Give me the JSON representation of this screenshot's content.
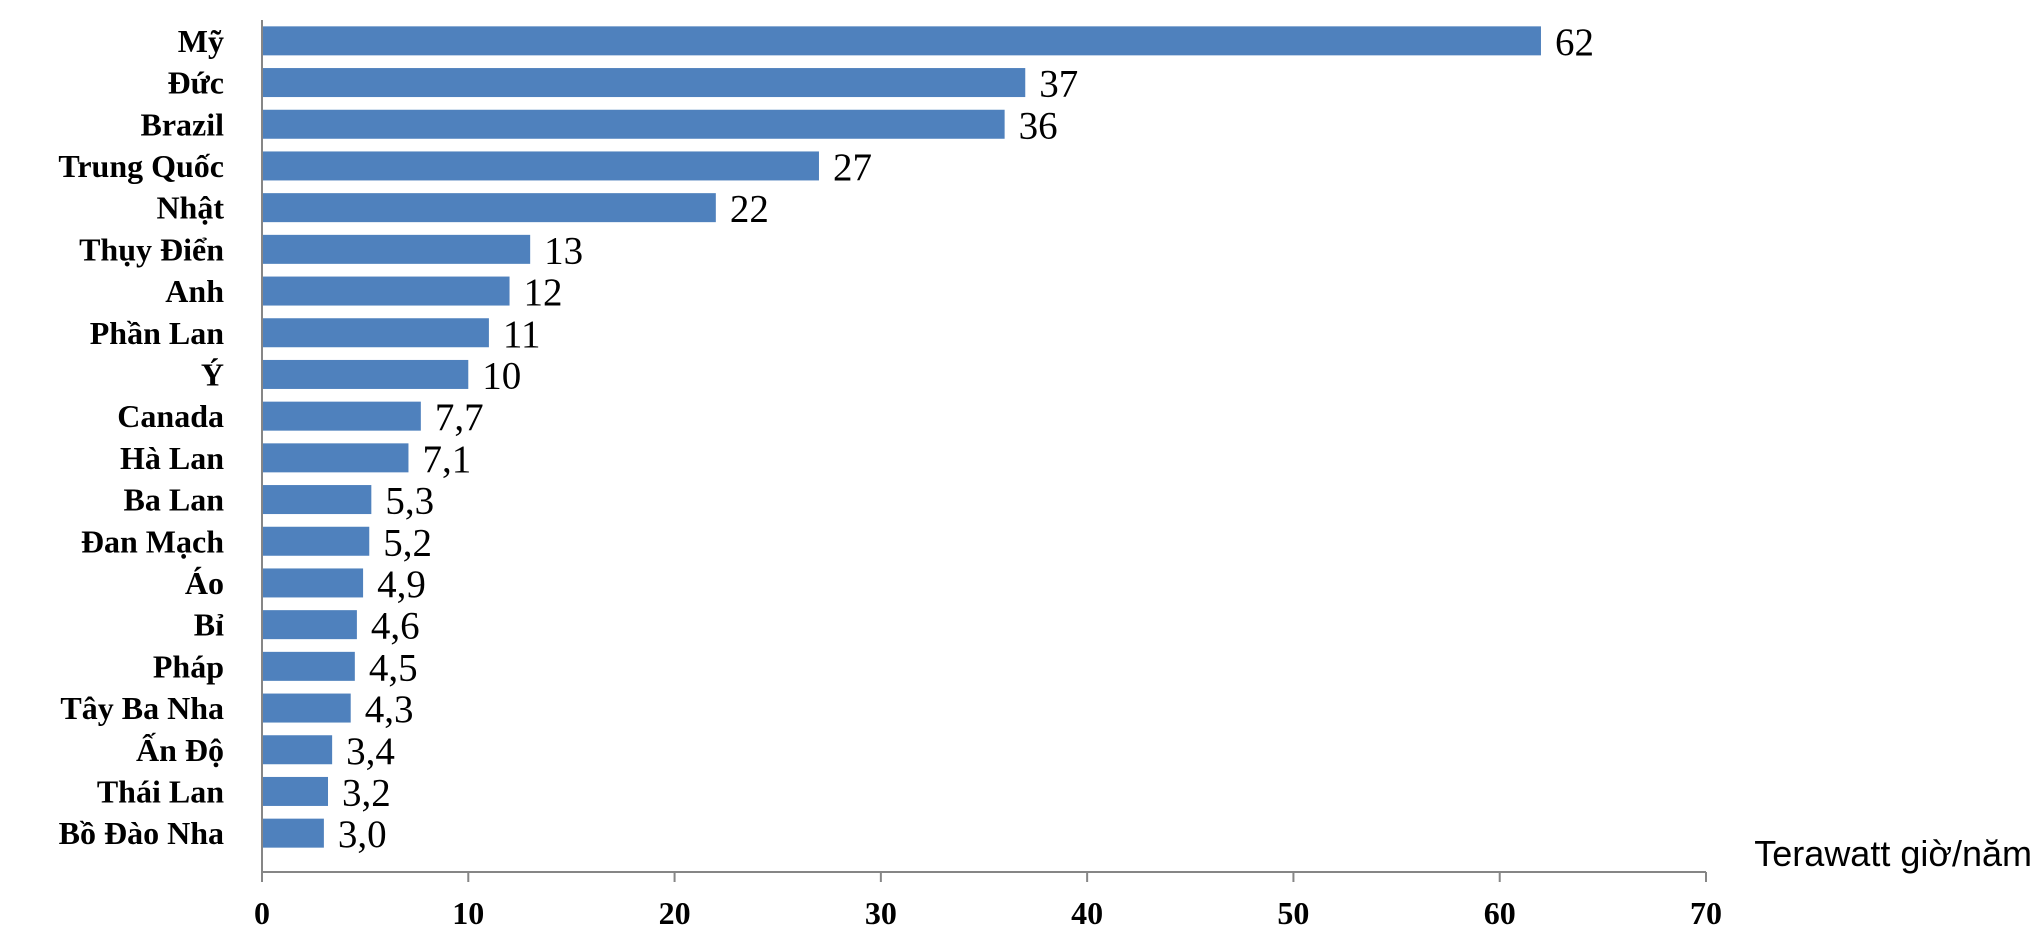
{
  "chart_data": {
    "type": "bar",
    "orientation": "horizontal",
    "categories": [
      "Mỹ",
      "Đức",
      "Brazil",
      "Trung Quốc",
      "Nhật",
      "Thụy Điển",
      "Anh",
      "Phần Lan",
      "Ý",
      "Canada",
      "Hà Lan",
      "Ba Lan",
      "Đan Mạch",
      "Áo",
      "Bỉ",
      "Pháp",
      "Tây Ba Nha",
      "Ấn Độ",
      "Thái Lan",
      "Bồ Đào Nha"
    ],
    "values": [
      62,
      37,
      36,
      27,
      22,
      13,
      12,
      11,
      10,
      7.7,
      7.1,
      5.3,
      5.2,
      4.9,
      4.6,
      4.5,
      4.3,
      3.4,
      3.2,
      3.0
    ],
    "value_labels": [
      "62",
      "37",
      "36",
      "27",
      "22",
      "13",
      "12",
      "11",
      "10",
      "7,7",
      "7,1",
      "5,3",
      "5,2",
      "4,9",
      "4,6",
      "4,5",
      "4,3",
      "3,4",
      "3,2",
      "3,0"
    ],
    "xticks": [
      "0",
      "10",
      "20",
      "30",
      "40",
      "50",
      "60",
      "70"
    ],
    "xlabel": "Terawatt giờ/năm",
    "xlim": [
      0,
      70
    ],
    "bar_color": "#4F81BD",
    "grid": false
  }
}
